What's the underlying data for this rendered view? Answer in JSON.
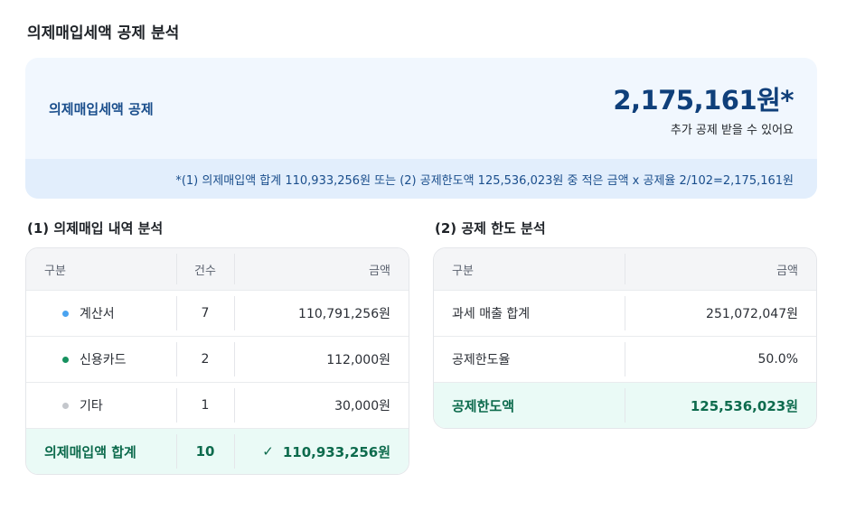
{
  "page_title": "의제매입세액 공제 분석",
  "summary": {
    "label": "의제매입세액 공제",
    "amount": "2,175,161원*",
    "subtitle": "추가 공제 받을 수 있어요",
    "formula": "*(1) 의제매입액 합계 110,933,256원 또는 (2) 공제한도액 125,536,023원 중 적은 금액 x 공제율 2/102=2,175,161원"
  },
  "purchase_table": {
    "title": "(1) 의제매입 내역 분석",
    "headers": {
      "division": "구분",
      "count": "건수",
      "amount": "금액"
    },
    "rows": [
      {
        "label": "계산서",
        "count": "7",
        "amount": "110,791,256원",
        "dot_color": "#4aa3f0"
      },
      {
        "label": "신용카드",
        "count": "2",
        "amount": "112,000원",
        "dot_color": "#17915f"
      },
      {
        "label": "기타",
        "count": "1",
        "amount": "30,000원",
        "dot_color": "#c4c7cc"
      }
    ],
    "total": {
      "label": "의제매입액 합계",
      "count": "10",
      "check_icon": "✓",
      "amount": "110,933,256원"
    }
  },
  "limit_table": {
    "title": "(2) 공제 한도 분석",
    "headers": {
      "division": "구분",
      "amount": "금액"
    },
    "rows": [
      {
        "label": "과세 매출 합계",
        "amount": "251,072,047원"
      },
      {
        "label": "공제한도율",
        "amount": "50.0%"
      }
    ],
    "total": {
      "label": "공제한도액",
      "amount": "125,536,023원"
    }
  },
  "colors": {
    "summary_bg": "#f1f7fe",
    "summary_footer_bg": "#e2eefc",
    "accent_blue": "#0f3f7a",
    "total_green": "#0d6b4d",
    "total_bg": "#eafaf6"
  }
}
